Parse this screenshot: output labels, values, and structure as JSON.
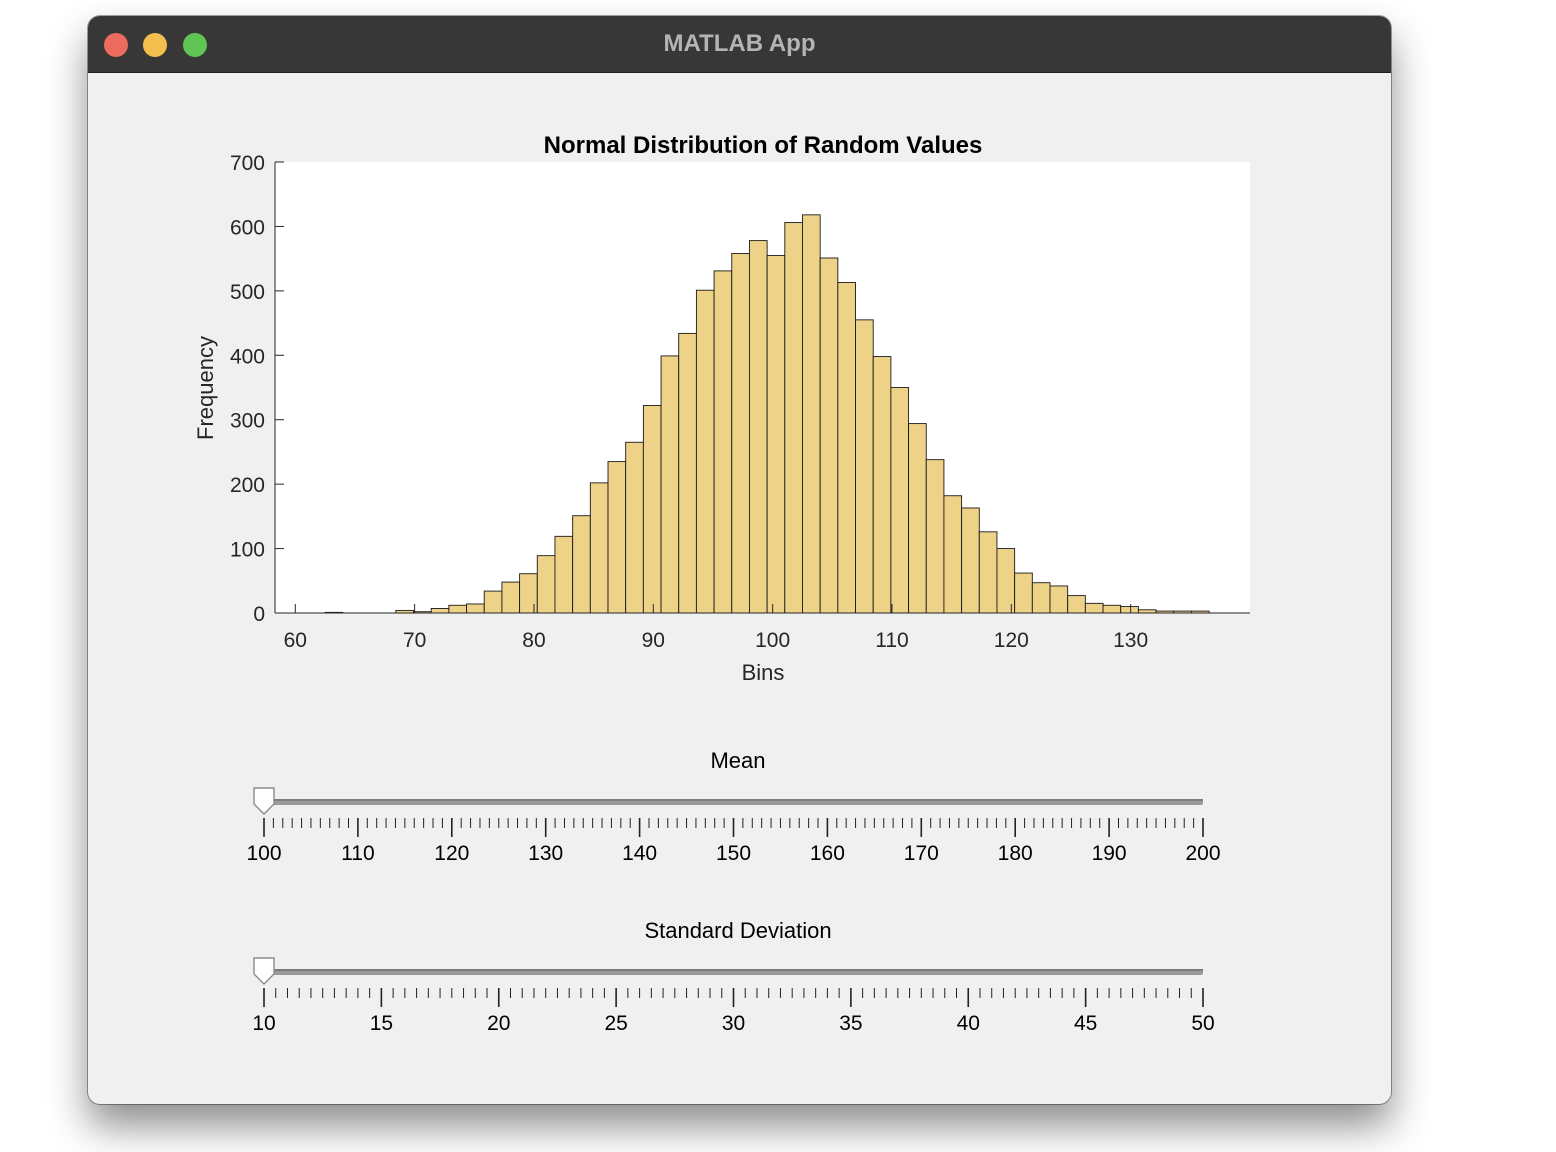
{
  "window": {
    "title": "MATLAB App",
    "controls": [
      "close",
      "minimize",
      "maximize"
    ],
    "colors": {
      "close": "#ec6a5e",
      "minimize": "#f4be4f",
      "maximize": "#61c554"
    }
  },
  "chart_data": {
    "type": "bar",
    "title": "Normal Distribution of Random Values",
    "xlabel": "Bins",
    "ylabel": "Frequency",
    "xlim": [
      58.3,
      140
    ],
    "ylim": [
      0,
      700
    ],
    "xticks": [
      60,
      70,
      80,
      90,
      100,
      110,
      120,
      130
    ],
    "yticks": [
      0,
      100,
      200,
      300,
      400,
      500,
      600,
      700
    ],
    "bar_color": "#edd288",
    "bin_width": 1.4815,
    "bin_start": 62.5,
    "values": [
      1,
      0,
      0,
      0,
      4,
      2,
      7,
      12,
      14,
      34,
      48,
      61,
      89,
      119,
      151,
      202,
      235,
      265,
      322,
      399,
      434,
      501,
      531,
      558,
      578,
      555,
      606,
      618,
      551,
      513,
      455,
      398,
      350,
      294,
      238,
      182,
      163,
      126,
      100,
      62,
      47,
      42,
      27,
      15,
      12,
      10,
      5,
      3,
      3,
      3
    ]
  },
  "sliders": [
    {
      "label": "Mean",
      "min": 100,
      "max": 200,
      "value": 100,
      "major_ticks": [
        100,
        110,
        120,
        130,
        140,
        150,
        160,
        170,
        180,
        190,
        200
      ],
      "minor_step": 1
    },
    {
      "label": "Standard Deviation",
      "min": 10,
      "max": 50,
      "value": 10,
      "major_ticks": [
        10,
        15,
        20,
        25,
        30,
        35,
        40,
        45,
        50
      ],
      "minor_step": 0.5
    }
  ]
}
